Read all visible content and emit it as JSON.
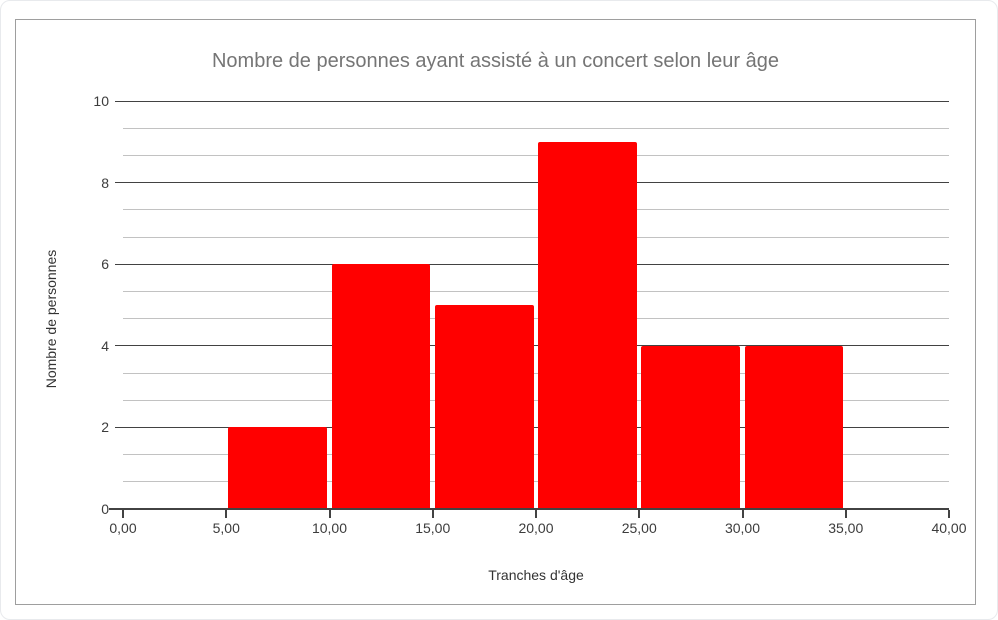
{
  "chart_data": {
    "type": "bar",
    "subtype": "histogram",
    "title": "Nombre de personnes ayant assisté à un concert selon leur âge",
    "xlabel": "Tranches d'âge",
    "ylabel": "Nombre de personnes",
    "bins": [
      {
        "x0": 5,
        "x1": 10,
        "count": 2
      },
      {
        "x0": 10,
        "x1": 15,
        "count": 6
      },
      {
        "x0": 15,
        "x1": 20,
        "count": 5
      },
      {
        "x0": 20,
        "x1": 25,
        "count": 9
      },
      {
        "x0": 25,
        "x1": 30,
        "count": 4
      },
      {
        "x0": 30,
        "x1": 35,
        "count": 4
      }
    ],
    "xlim": [
      0,
      40
    ],
    "ylim": [
      0,
      10
    ],
    "x_tick_values": [
      0,
      5,
      10,
      15,
      20,
      25,
      30,
      35,
      40
    ],
    "x_tick_labels": [
      "0,00",
      "5,00",
      "10,00",
      "15,00",
      "20,00",
      "25,00",
      "30,00",
      "35,00",
      "40,00"
    ],
    "y_tick_values": [
      0,
      2,
      4,
      6,
      8,
      10
    ],
    "y_tick_labels": [
      "0",
      "2",
      "4",
      "6",
      "8",
      "10"
    ],
    "y_minor_divisions_per_major": 3,
    "grid": true,
    "legend": "none",
    "colors": {
      "bar": "#ff0000",
      "title_text": "#757575",
      "axis_title_text": "#333333",
      "tick_label_text": "#3c3c3c",
      "axis_line": "#424242",
      "major_gridline": "#424242",
      "minor_gridline": "#c2c2c2",
      "frame_border": "#9e9e9e"
    }
  }
}
